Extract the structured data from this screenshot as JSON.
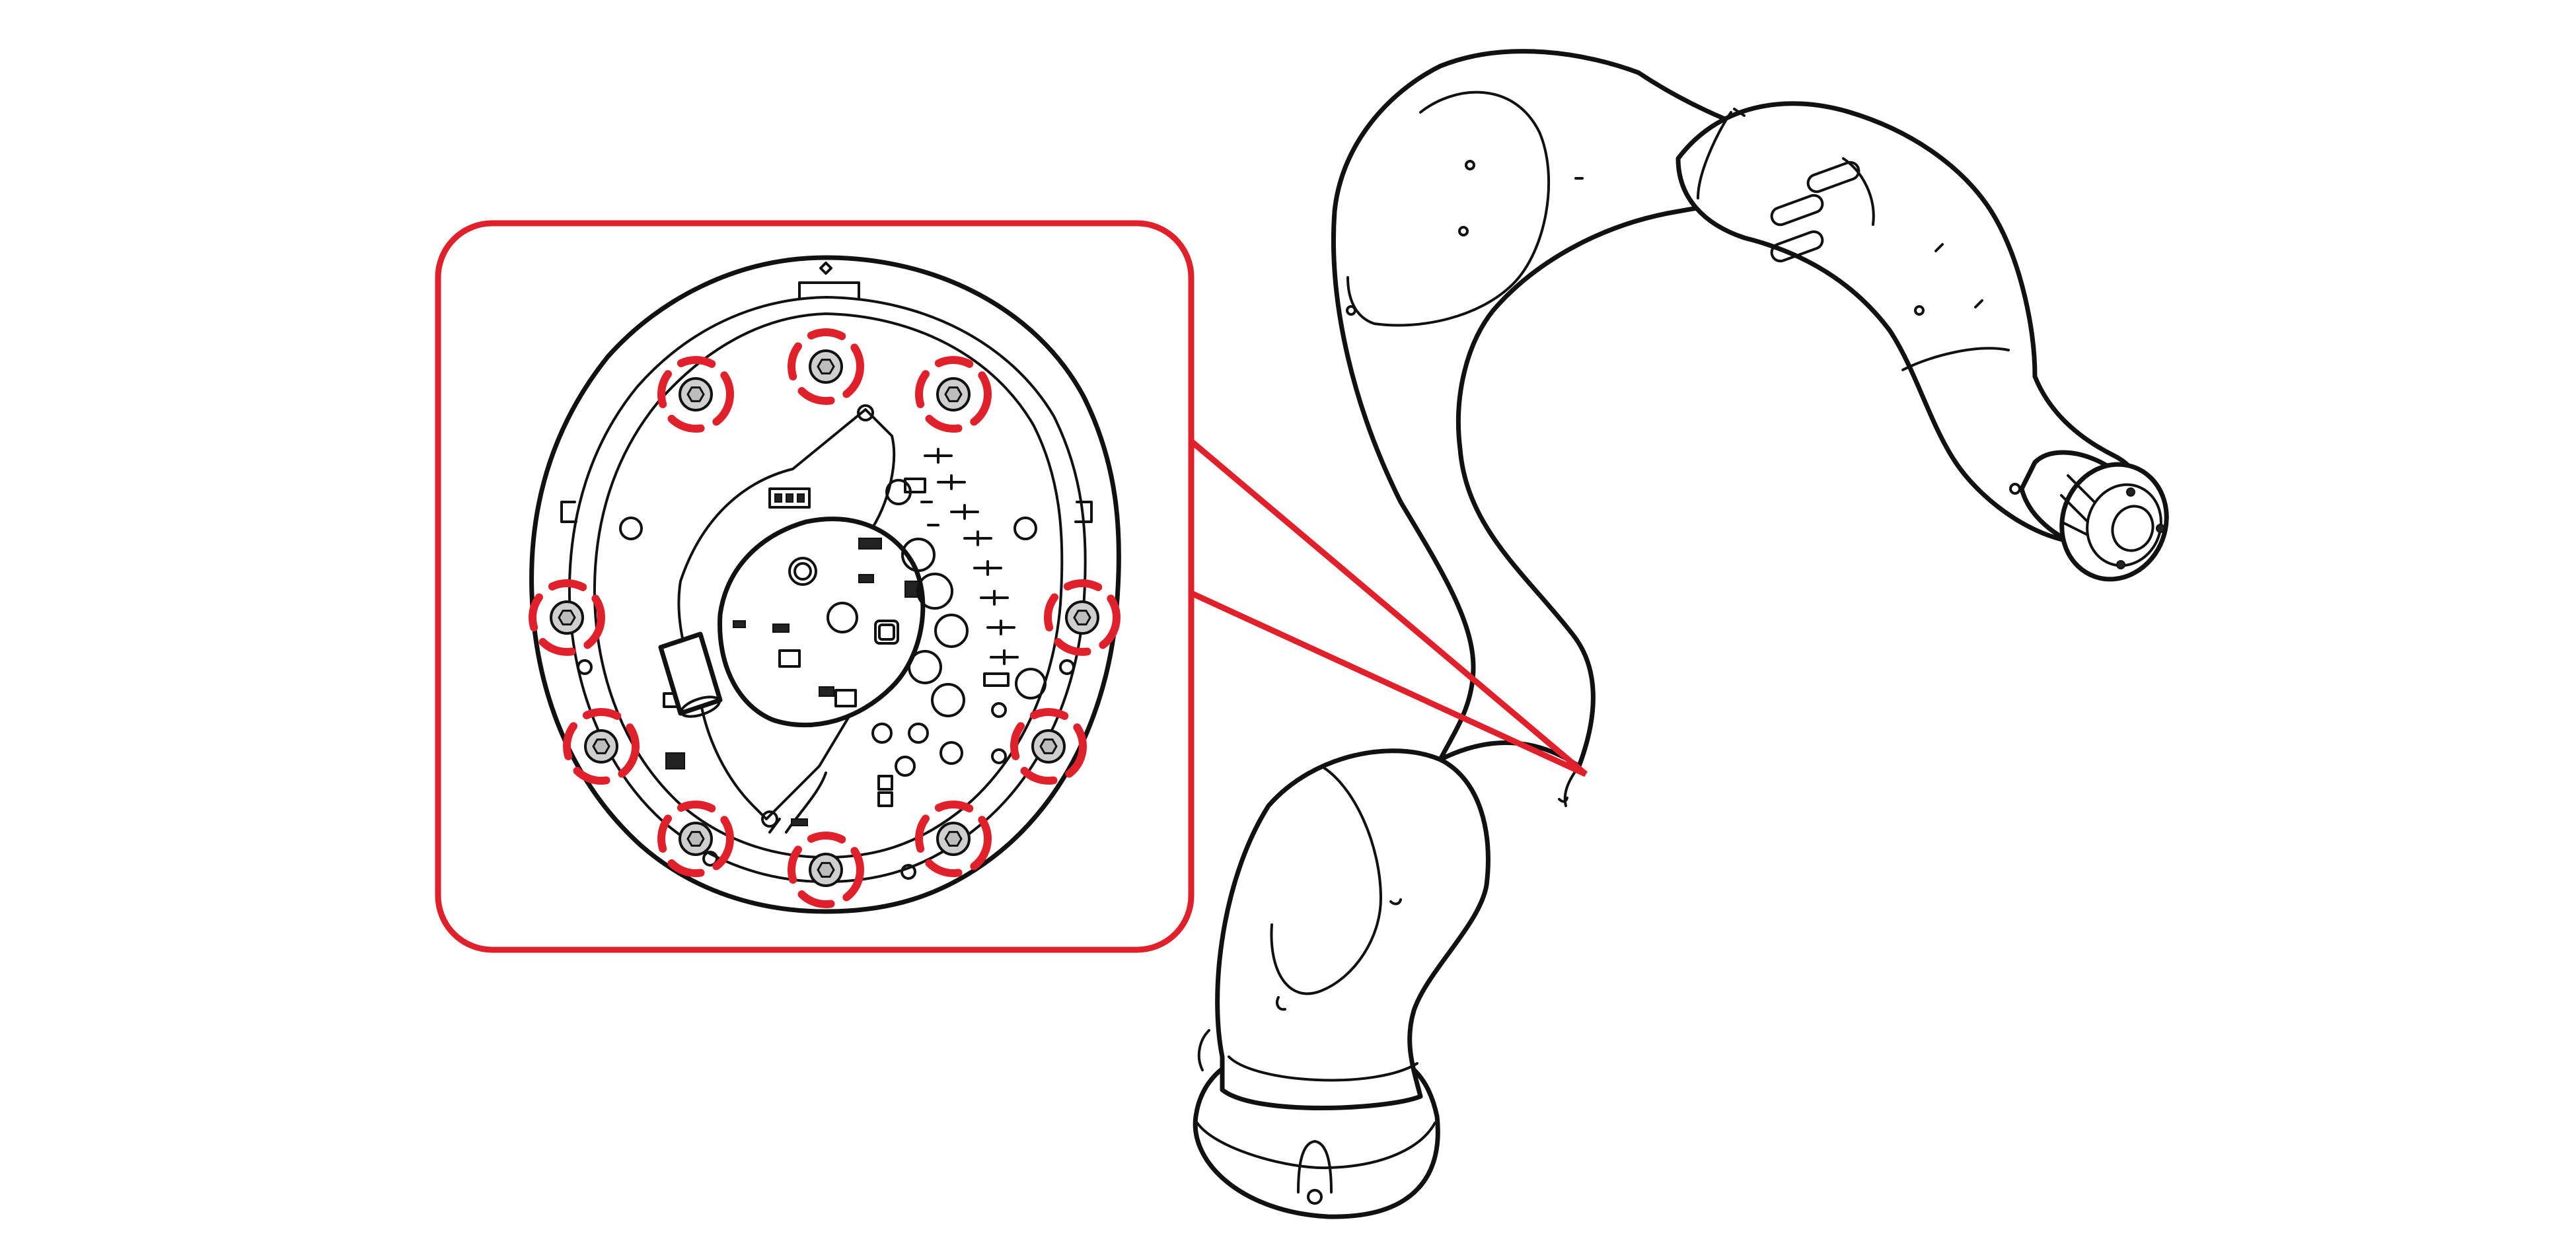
{
  "diagram": {
    "colors": {
      "callout": "#e0202a",
      "line": "#111111",
      "background": "#ffffff",
      "screw_fill": "#cfcfcf"
    },
    "callout": {
      "highlighted_screws": 10,
      "highlight_style": "dashed red circles"
    },
    "subjects": [
      "robot-arm",
      "joint-cover-interior",
      "circuit-board"
    ]
  }
}
